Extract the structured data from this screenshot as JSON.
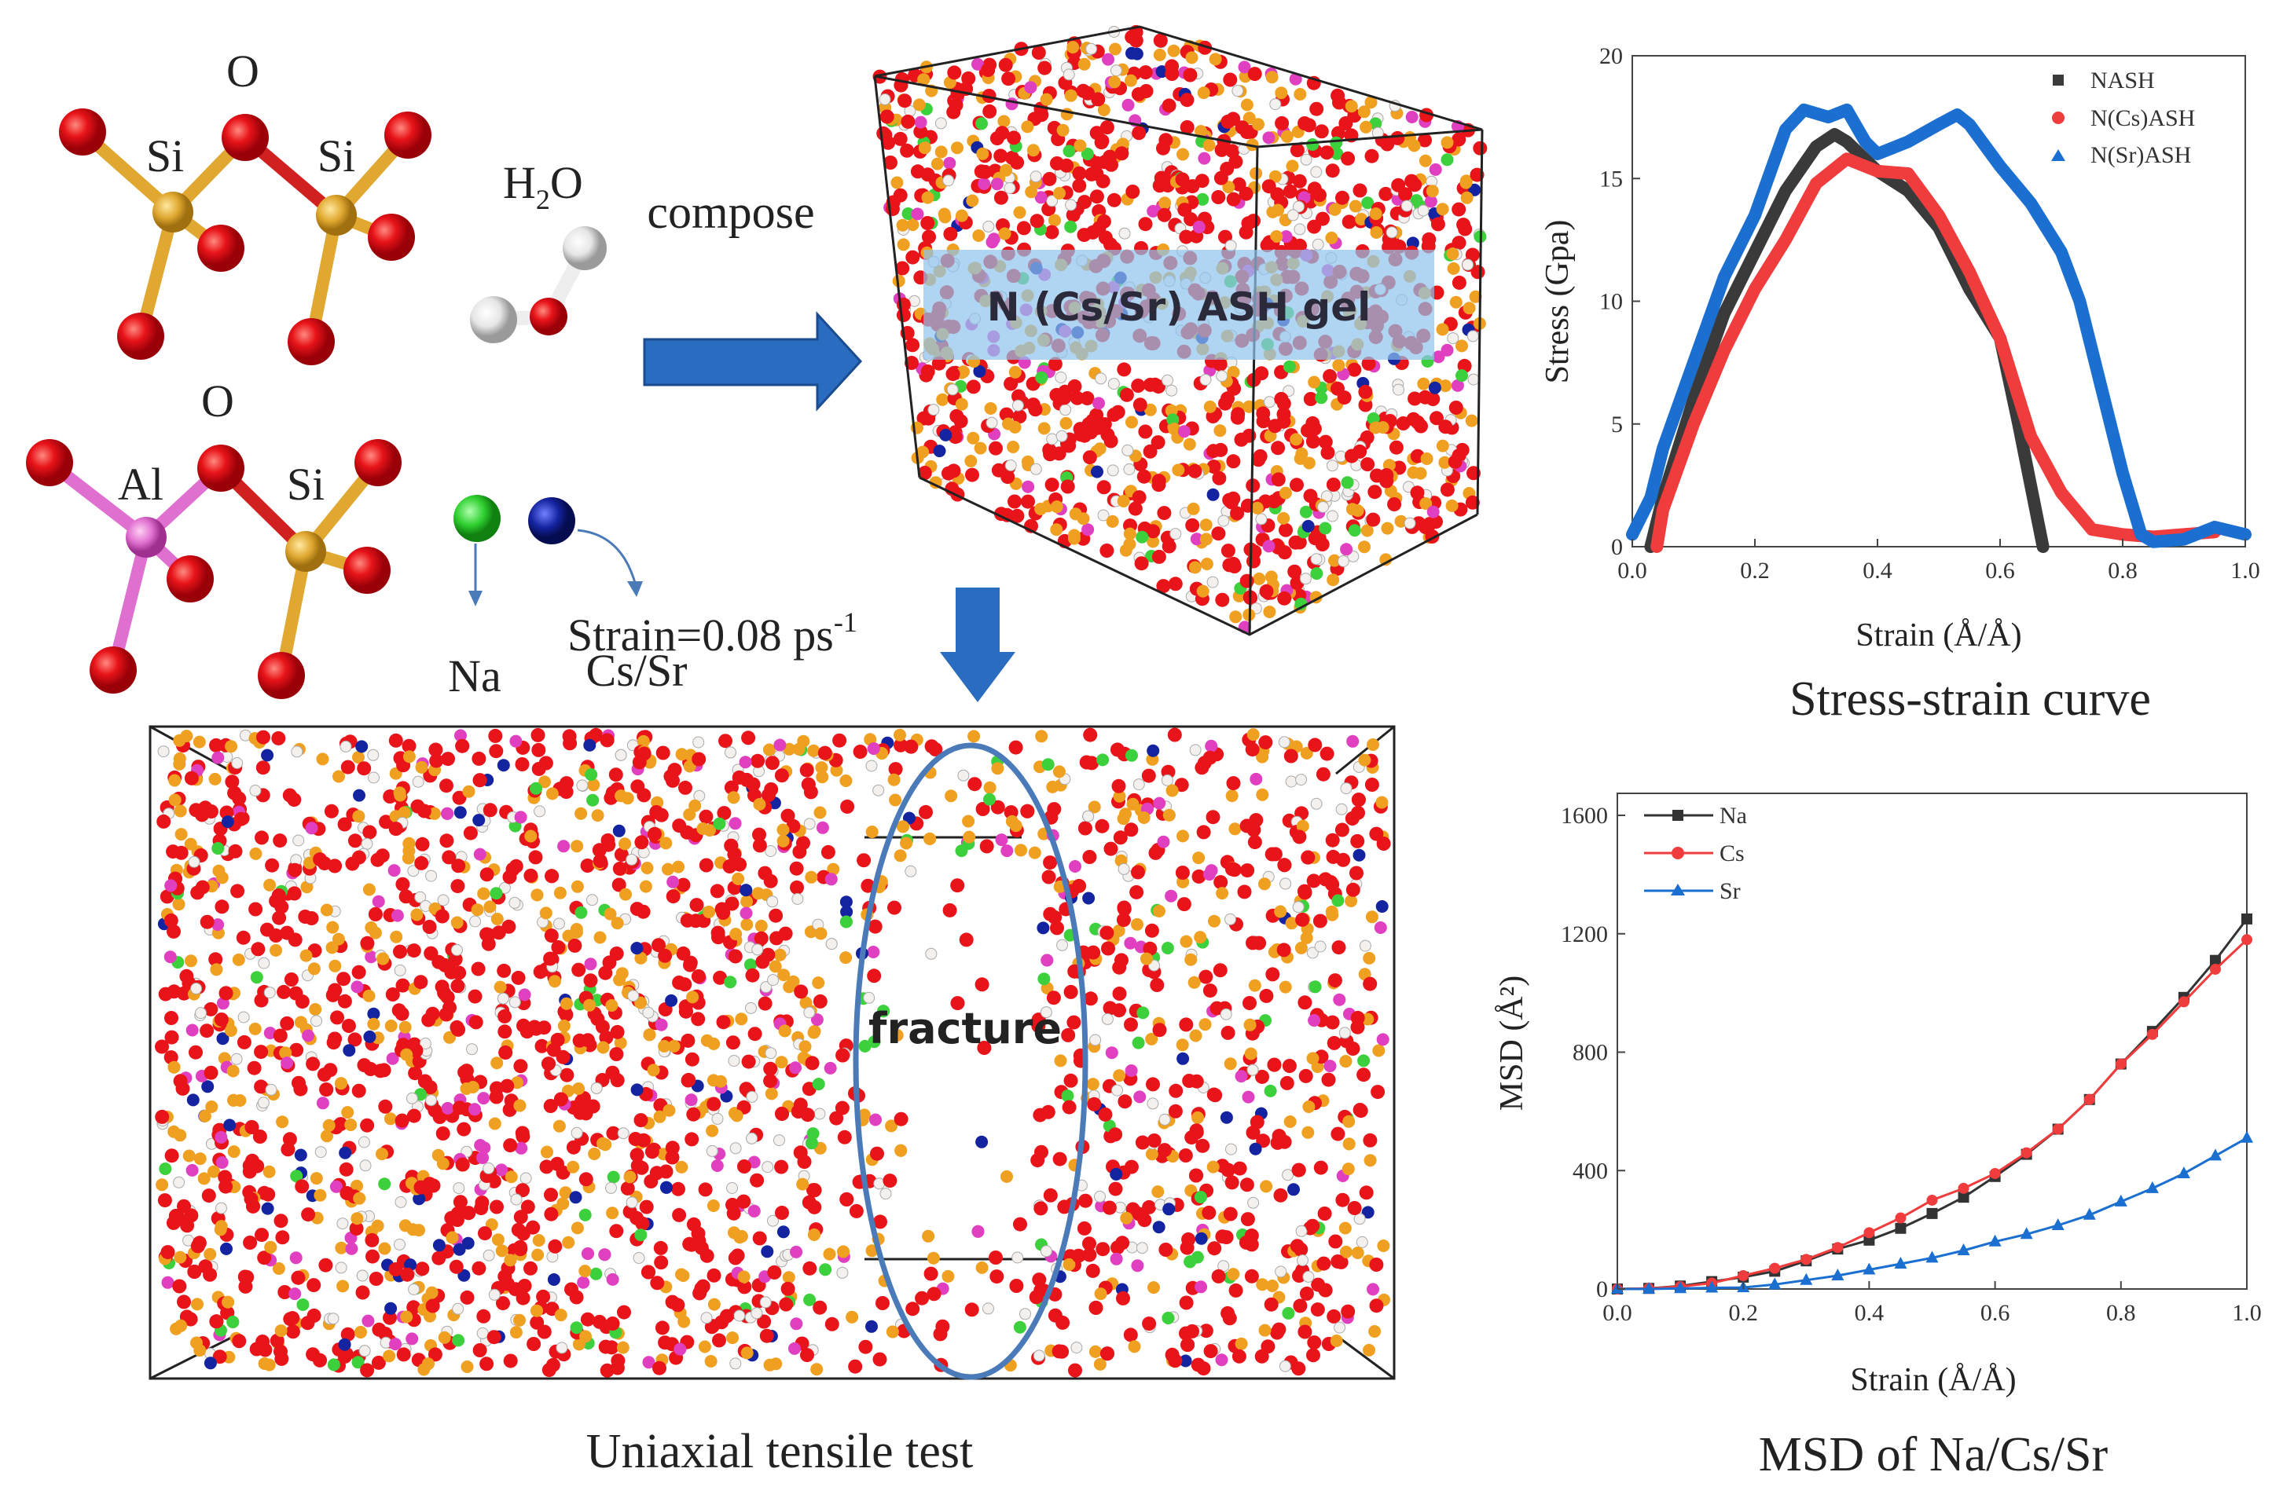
{
  "molecules": {
    "label_o_top": "O",
    "label_si_1": "Si",
    "label_si_2": "Si",
    "label_o_bottom": "O",
    "label_al": "Al",
    "label_si_3": "Si",
    "label_h2o_main": "H",
    "label_h2o_sub": "2",
    "label_h2o_tail": "O",
    "label_na": "Na",
    "label_cs_sr": "Cs/Sr"
  },
  "compose_label": "compose",
  "gel_label": "N (Cs/Sr) ASH gel",
  "strain_rate": {
    "text": "Strain=0.08 ps",
    "superscript": "-1"
  },
  "fracture_label": "fracture",
  "tensile_caption": "Uniaxial tensile test",
  "colors": {
    "oxygen": "#e8141a",
    "silicon": "#f0a020",
    "hydrogen": "#f4f0ee",
    "aluminium": "#e040c0",
    "sodium": "#3cd03c",
    "cs_sr": "#1424a0",
    "arrow": "#2a6cc0",
    "ellipse": "#4a7ab8"
  },
  "chart_data": [
    {
      "type": "line",
      "title": "Stress-strain curve",
      "xlabel": "Strain (Å/Å)",
      "ylabel": "Stress (Gpa)",
      "xlim": [
        0,
        1.0
      ],
      "ylim": [
        0,
        20
      ],
      "xticks": [
        "0.0",
        "0.2",
        "0.4",
        "0.6",
        "0.8",
        "1.0"
      ],
      "yticks": [
        "0",
        "5",
        "10",
        "15",
        "20"
      ],
      "legend_position": "top-right",
      "series": [
        {
          "name": "NASH",
          "color": "#3a3a3a",
          "marker": "square",
          "x": [
            0.03,
            0.05,
            0.1,
            0.15,
            0.2,
            0.25,
            0.3,
            0.33,
            0.35,
            0.4,
            0.45,
            0.5,
            0.55,
            0.6,
            0.63,
            0.65,
            0.67
          ],
          "y": [
            0,
            2,
            6,
            9.5,
            12,
            14.5,
            16.3,
            16.8,
            16.5,
            15.3,
            14.5,
            13,
            10.5,
            8.5,
            5,
            2.5,
            0
          ]
        },
        {
          "name": "N(Cs)ASH",
          "color": "#f03c3c",
          "marker": "circle",
          "x": [
            0.04,
            0.05,
            0.1,
            0.15,
            0.2,
            0.25,
            0.3,
            0.35,
            0.4,
            0.45,
            0.5,
            0.55,
            0.6,
            0.65,
            0.7,
            0.75,
            0.8,
            0.85,
            0.9,
            0.95
          ],
          "y": [
            0,
            1.5,
            5,
            8,
            10.5,
            12.5,
            14.8,
            15.8,
            15.3,
            15.2,
            13.5,
            11.2,
            8.5,
            4.5,
            2.2,
            0.7,
            0.5,
            0.4,
            0.5,
            0.6
          ]
        },
        {
          "name": "N(Sr)ASH",
          "color": "#1a6fd0",
          "marker": "triangle",
          "x": [
            0,
            0.03,
            0.05,
            0.1,
            0.15,
            0.2,
            0.25,
            0.28,
            0.32,
            0.35,
            0.38,
            0.4,
            0.45,
            0.5,
            0.53,
            0.55,
            0.6,
            0.65,
            0.7,
            0.73,
            0.77,
            0.8,
            0.83,
            0.85,
            0.9,
            0.95,
            1.0
          ],
          "y": [
            0.5,
            2,
            4,
            7.5,
            11,
            13.5,
            17,
            17.8,
            17.5,
            17.8,
            16.5,
            16,
            16.5,
            17.2,
            17.6,
            17.2,
            15.5,
            14,
            12,
            10,
            6,
            3,
            0.5,
            0.2,
            0.3,
            0.8,
            0.5
          ]
        }
      ]
    },
    {
      "type": "line",
      "title": "MSD of Na/Cs/Sr",
      "xlabel": "Strain (Å/Å)",
      "ylabel": "MSD (Å²)",
      "xlim": [
        0,
        1.0
      ],
      "ylim": [
        0,
        1600
      ],
      "xticks": [
        "0.0",
        "0.2",
        "0.4",
        "0.6",
        "0.8",
        "1.0"
      ],
      "yticks": [
        "0",
        "400",
        "800",
        "1200",
        "1600"
      ],
      "legend_position": "top-left",
      "x": [
        0,
        0.05,
        0.1,
        0.15,
        0.2,
        0.25,
        0.3,
        0.35,
        0.4,
        0.45,
        0.5,
        0.55,
        0.6,
        0.65,
        0.7,
        0.75,
        0.8,
        0.85,
        0.9,
        0.95,
        1.0
      ],
      "series": [
        {
          "name": "Na",
          "color": "#333333",
          "marker": "square",
          "values": [
            0,
            2,
            10,
            25,
            40,
            60,
            95,
            135,
            165,
            205,
            255,
            310,
            380,
            455,
            540,
            640,
            760,
            870,
            985,
            1110,
            1250
          ]
        },
        {
          "name": "Cs",
          "color": "#f03c3c",
          "marker": "circle",
          "values": [
            0,
            2,
            8,
            20,
            45,
            70,
            100,
            140,
            190,
            240,
            300,
            340,
            390,
            460,
            540,
            640,
            760,
            860,
            970,
            1080,
            1180
          ]
        },
        {
          "name": "Sr",
          "color": "#1a6fd0",
          "marker": "triangle",
          "values": [
            0,
            0,
            2,
            4,
            5,
            15,
            30,
            45,
            65,
            85,
            105,
            130,
            160,
            185,
            215,
            250,
            295,
            340,
            390,
            450,
            510
          ]
        }
      ]
    }
  ]
}
